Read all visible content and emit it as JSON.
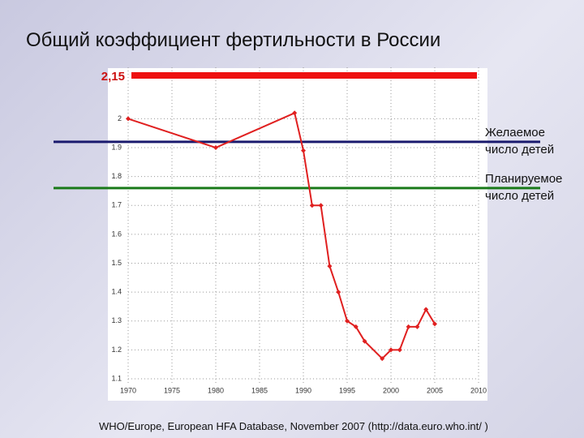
{
  "chart_data": {
    "type": "line",
    "title": "Общий коэффициент фертильности в России",
    "source": "WHO/Europe, European HFA Database, November 2007 (http://data.euro.who.int/ )",
    "x": [
      1970,
      1980,
      1989,
      1990,
      1991,
      1992,
      1993,
      1994,
      1995,
      1996,
      1997,
      1999,
      2000,
      2001,
      2002,
      2003,
      2004,
      2005
    ],
    "series": [
      {
        "name": null,
        "color": "#e02020",
        "values": [
          2.0,
          1.9,
          2.02,
          1.89,
          1.7,
          1.7,
          1.49,
          1.4,
          1.3,
          1.28,
          1.23,
          1.17,
          1.2,
          1.2,
          1.28,
          1.28,
          1.34,
          1.29
        ]
      }
    ],
    "reference_lines": [
      {
        "value": 2.15,
        "label": "2,15",
        "color": "#ee1111"
      },
      {
        "value": 1.92,
        "label": "Желаемое число детей",
        "color": "#1a1a6e"
      },
      {
        "value": 1.76,
        "label": "Планируемое число детей",
        "color": "#1a7a1a"
      }
    ],
    "xlim": [
      1970,
      2010
    ],
    "xticks": [
      1970,
      1975,
      1980,
      1985,
      1990,
      1995,
      2000,
      2005,
      2010
    ],
    "ylim": [
      1.1,
      2.15
    ],
    "yticks": [
      1.1,
      1.2,
      1.3,
      1.4,
      1.5,
      1.6,
      1.7,
      1.8,
      1.9,
      2
    ],
    "grid": true
  }
}
